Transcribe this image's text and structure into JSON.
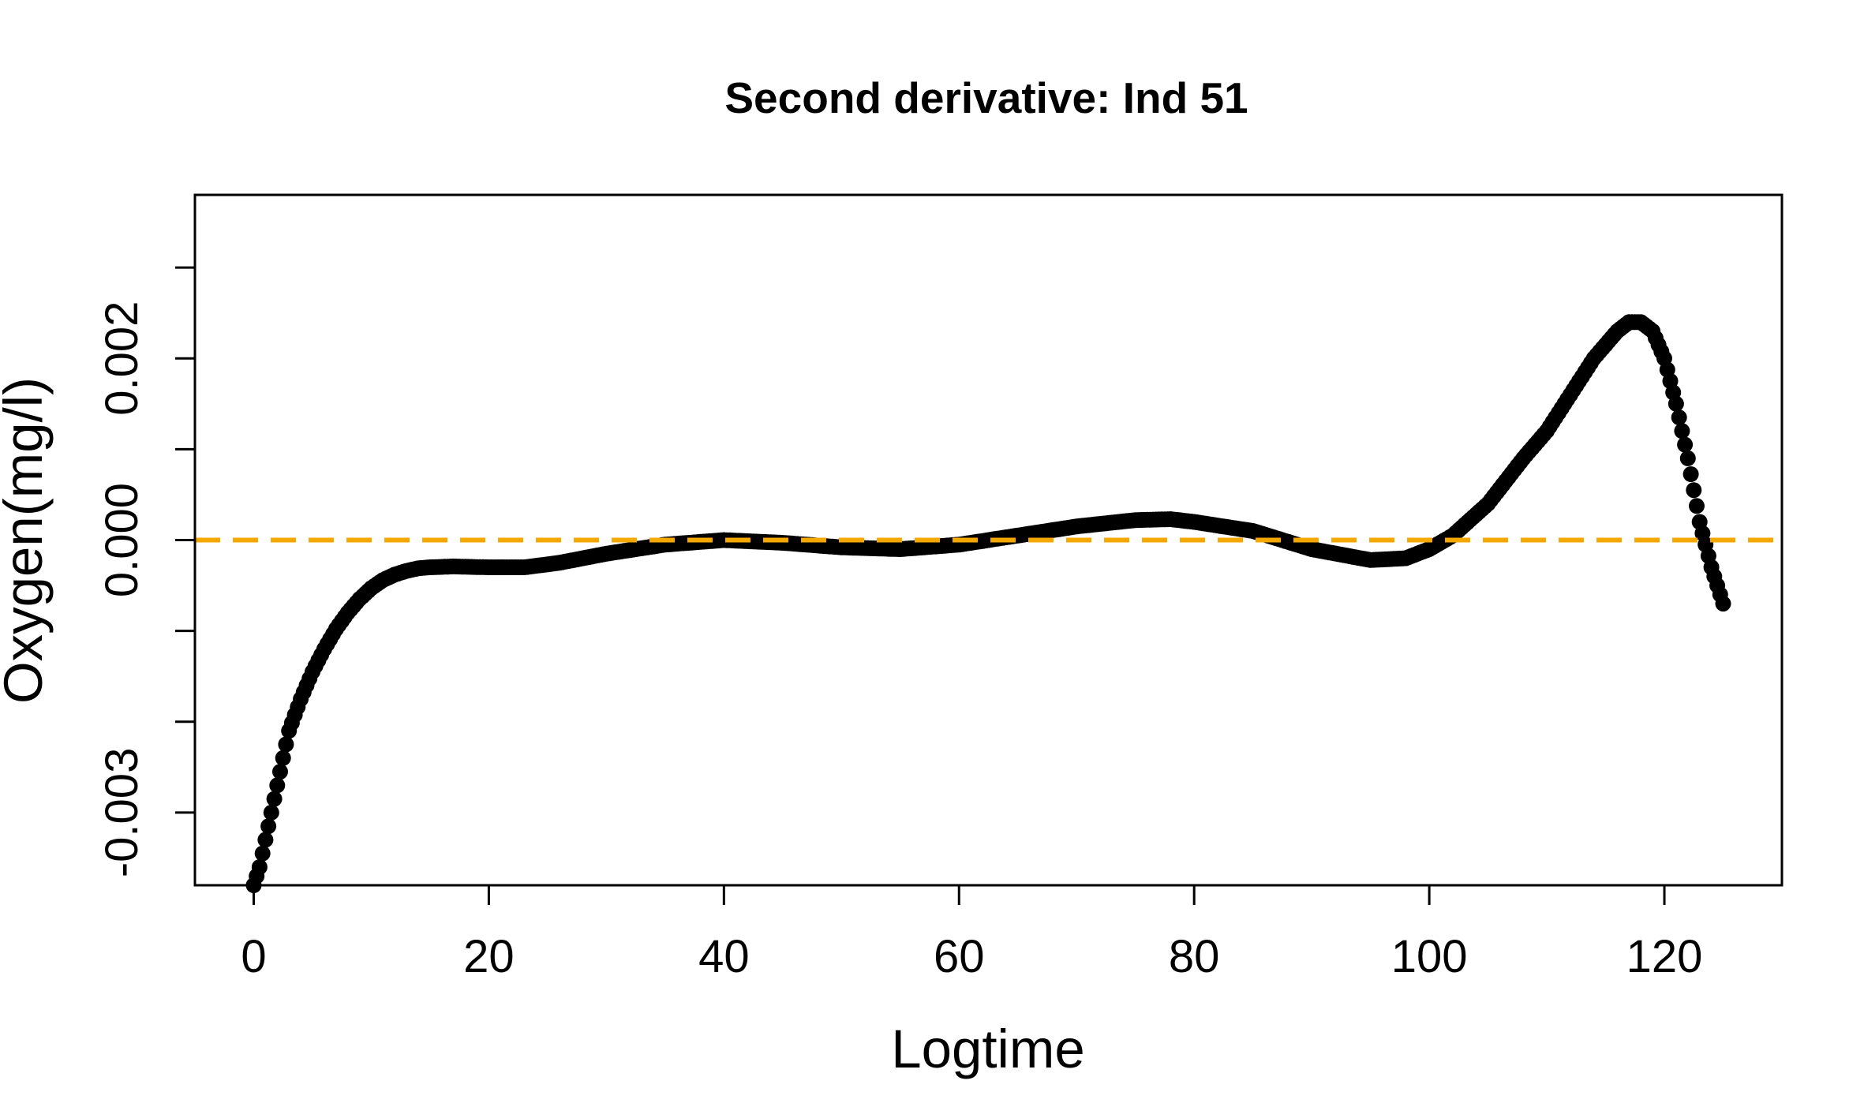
{
  "chart_data": {
    "type": "scatter",
    "title": "Second derivative: Ind 51",
    "xlabel": "Logtime",
    "ylabel": "Oxygen(mg/l)",
    "xlim": [
      -5,
      130
    ],
    "ylim": [
      -0.0038,
      0.0038
    ],
    "x_ticks": [
      0,
      20,
      40,
      60,
      80,
      100,
      120
    ],
    "x_tick_labels": [
      "0",
      "20",
      "40",
      "60",
      "80",
      "100",
      "120"
    ],
    "y_ticks": [
      -0.003,
      -0.002,
      -0.001,
      0.0,
      0.001,
      0.002,
      0.003
    ],
    "y_tick_labels": [
      "-0.003",
      "",
      "",
      "0.000",
      "",
      "0.002",
      ""
    ],
    "grid": false,
    "point_color": "#000000",
    "reference_line": {
      "y": 0,
      "style": "dashed",
      "color": "#F5A800"
    },
    "series": [
      {
        "x": [
          0,
          0.5,
          1,
          1.5,
          2,
          2.5,
          3,
          4,
          5,
          6,
          7,
          8,
          9,
          10,
          11,
          12,
          13,
          14,
          15,
          17,
          20,
          23,
          26,
          30,
          35,
          40,
          45,
          50,
          55,
          60,
          65,
          70,
          75,
          78,
          80,
          85,
          90,
          95,
          98,
          100,
          102,
          105,
          108,
          110,
          112,
          114,
          116,
          117,
          118,
          119,
          120,
          121,
          122,
          123,
          124,
          124.5,
          125
        ],
        "y": [
          -0.0038,
          -0.0036,
          -0.0033,
          -0.003,
          -0.0027,
          -0.0024,
          -0.0021,
          -0.00175,
          -0.00145,
          -0.0012,
          -0.00098,
          -0.0008,
          -0.00065,
          -0.00053,
          -0.00044,
          -0.00038,
          -0.00034,
          -0.00031,
          -0.0003,
          -0.00029,
          -0.0003,
          -0.0003,
          -0.00025,
          -0.00015,
          -5e-05,
          0.0,
          -3e-05,
          -8e-05,
          -0.0001,
          -5e-05,
          5e-05,
          0.00015,
          0.00022,
          0.00023,
          0.0002,
          0.0001,
          -0.0001,
          -0.00022,
          -0.0002,
          -0.0001,
          5e-05,
          0.0004,
          0.0009,
          0.0012,
          0.0016,
          0.002,
          0.0023,
          0.0024,
          0.0024,
          0.0023,
          0.002,
          0.0015,
          0.0009,
          0.0002,
          -0.0003,
          -0.0005,
          -0.0007
        ]
      }
    ]
  }
}
